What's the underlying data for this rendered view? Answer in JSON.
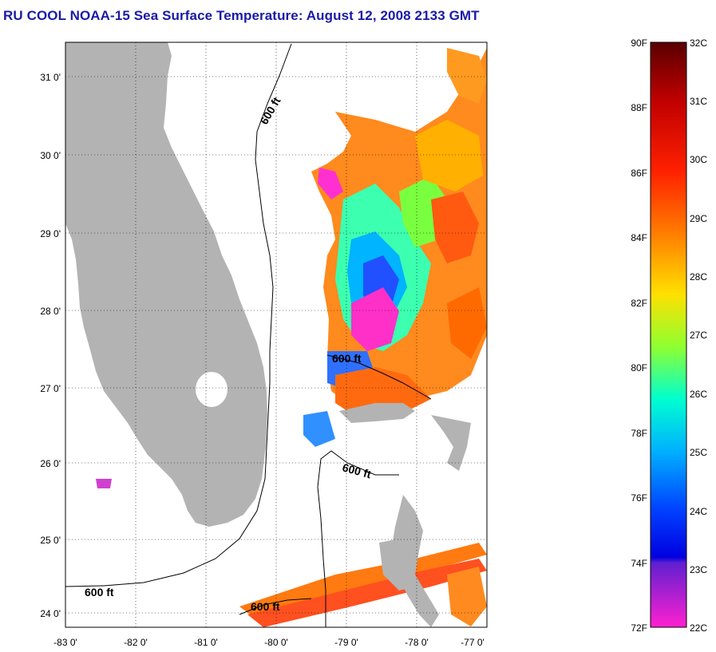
{
  "title": "RU COOL  NOAA-15  Sea Surface Temperature:  August 12, 2008 2133 GMT",
  "map": {
    "lon_range": [
      -83,
      -77
    ],
    "lat_range": [
      23.8,
      31.4
    ],
    "lon_ticks": [
      "-83 0'",
      "-82 0'",
      "-81 0'",
      "-80 0'",
      "-79 0'",
      "-78 0'",
      "-77 0'"
    ],
    "lat_ticks": [
      "24 0'",
      "25 0'",
      "26 0'",
      "27 0'",
      "28 0'",
      "29 0'",
      "30 0'",
      "31 0'"
    ],
    "land_color": "#b3b3b3",
    "contour_labels": [
      "600 ft",
      "600 ft",
      "600 ft",
      "600 ft",
      "600 ft"
    ]
  },
  "colorbar": {
    "fahrenheit_labels": [
      "90F",
      "88F",
      "86F",
      "84F",
      "82F",
      "80F",
      "78F",
      "76F",
      "74F",
      "72F"
    ],
    "celsius_labels": [
      "32C",
      "31C",
      "30C",
      "29C",
      "28C",
      "27C",
      "26C",
      "25C",
      "24C",
      "23C",
      "22C"
    ],
    "colors": [
      "#5a0000",
      "#c80000",
      "#ff2a00",
      "#ff7a00",
      "#ffd400",
      "#e6ff00",
      "#6aff3c",
      "#00ffd0",
      "#00c8ff",
      "#0064ff",
      "#0000ff",
      "#8020d0",
      "#ff20c8"
    ]
  }
}
